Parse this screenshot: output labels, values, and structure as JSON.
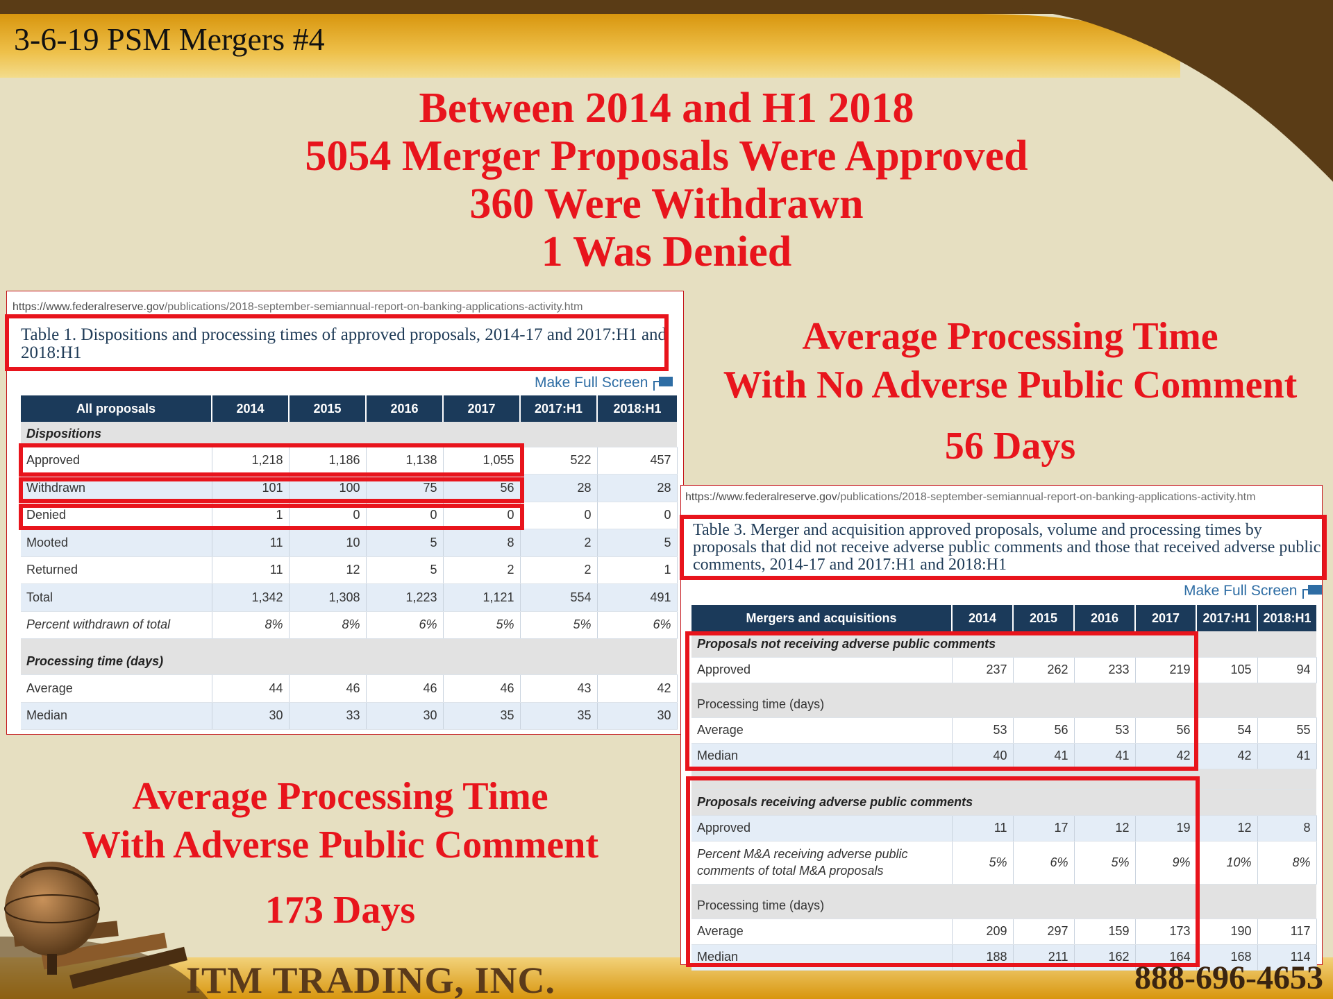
{
  "slide_title": "3-6-19 PSM Mergers #4",
  "headline": {
    "line1": "Between 2014 and H1 2018",
    "line2": "5054 Merger Proposals Were Approved",
    "line3": "360 Were Withdrawn",
    "line4": "1 Was Denied"
  },
  "callout_no_adverse": {
    "line1": "Average Processing Time",
    "line2": "With No Adverse Public Comment",
    "days": "56 Days"
  },
  "callout_adverse": {
    "line1": "Average Processing Time",
    "line2": "With Adverse Public Comment",
    "days": "173 Days"
  },
  "table1": {
    "url_domain": "https://www.federalreserve.gov",
    "url_path": "/publications/2018-september-semiannual-report-on-banking-applications-activity.htm",
    "caption": "Table 1. Dispositions and processing times of approved proposals, 2014-17 and 2017:H1 and 2018:H1",
    "fullscreen_label": "Make Full Screen",
    "headers": [
      "All proposals",
      "2014",
      "2015",
      "2016",
      "2017",
      "2017:H1",
      "2018:H1"
    ],
    "section_dispositions": "Dispositions",
    "rows": [
      {
        "label": "Approved",
        "values": [
          "1,218",
          "1,186",
          "1,138",
          "1,055",
          "522",
          "457"
        ]
      },
      {
        "label": "Withdrawn",
        "values": [
          "101",
          "100",
          "75",
          "56",
          "28",
          "28"
        ]
      },
      {
        "label": "Denied",
        "values": [
          "1",
          "0",
          "0",
          "0",
          "0",
          "0"
        ]
      },
      {
        "label": "Mooted",
        "values": [
          "11",
          "10",
          "5",
          "8",
          "2",
          "5"
        ]
      },
      {
        "label": "Returned",
        "values": [
          "11",
          "12",
          "5",
          "2",
          "2",
          "1"
        ]
      },
      {
        "label": "Total",
        "values": [
          "1,342",
          "1,308",
          "1,223",
          "1,121",
          "554",
          "491"
        ]
      },
      {
        "label": "Percent withdrawn of total",
        "values": [
          "8%",
          "8%",
          "6%",
          "5%",
          "5%",
          "6%"
        ]
      }
    ],
    "section_processing": "Processing time (days)",
    "processing_rows": [
      {
        "label": "Average",
        "values": [
          "44",
          "46",
          "46",
          "46",
          "43",
          "42"
        ]
      },
      {
        "label": "Median",
        "values": [
          "30",
          "33",
          "30",
          "35",
          "35",
          "30"
        ]
      }
    ]
  },
  "table3": {
    "url_domain": "https://www.federalreserve.gov",
    "url_path": "/publications/2018-september-semiannual-report-on-banking-applications-activity.htm",
    "caption": "Table 3. Merger and acquisition approved proposals, volume and processing times by proposals that did not receive adverse public comments and those that received adverse public comments, 2014-17 and 2017:H1 and 2018:H1",
    "fullscreen_label": "Make Full Screen",
    "headers": [
      "Mergers and acquisitions",
      "2014",
      "2015",
      "2016",
      "2017",
      "2017:H1",
      "2018:H1"
    ],
    "section_no_adverse": "Proposals not receiving adverse public comments",
    "no_adverse_approved": {
      "label": "Approved",
      "values": [
        "237",
        "262",
        "233",
        "219",
        "105",
        "94"
      ]
    },
    "processing_label": "Processing time (days)",
    "no_adverse_average": {
      "label": "Average",
      "values": [
        "53",
        "56",
        "53",
        "56",
        "54",
        "55"
      ]
    },
    "no_adverse_median": {
      "label": "Median",
      "values": [
        "40",
        "41",
        "41",
        "42",
        "42",
        "41"
      ]
    },
    "section_adverse": "Proposals receiving adverse public comments",
    "adverse_approved": {
      "label": "Approved",
      "values": [
        "11",
        "17",
        "12",
        "19",
        "12",
        "8"
      ]
    },
    "adverse_percent": {
      "label": "Percent M&A receiving adverse public comments of total M&A proposals",
      "values": [
        "5%",
        "6%",
        "5%",
        "9%",
        "10%",
        "8%"
      ]
    },
    "adverse_average": {
      "label": "Average",
      "values": [
        "209",
        "297",
        "159",
        "173",
        "190",
        "117"
      ]
    },
    "adverse_median": {
      "label": "Median",
      "values": [
        "188",
        "211",
        "162",
        "164",
        "168",
        "114"
      ]
    }
  },
  "footer": {
    "company": "ITM TRADING, INC.",
    "phone": "888-696-4653"
  },
  "colors": {
    "headline_red": "#e8141c",
    "table_header": "#1b3a5a",
    "background": "#e6dfc1",
    "banner_gold": "#e0a51e",
    "banner_brown": "#5a3c16"
  }
}
